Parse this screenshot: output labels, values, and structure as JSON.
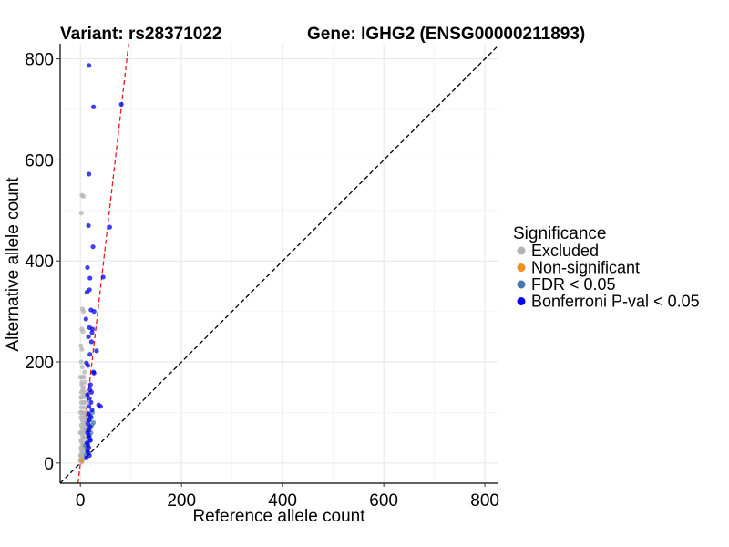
{
  "chart_data": {
    "type": "scatter",
    "title_left": "Variant: rs28371022",
    "title_right": "Gene: IGHG2 (ENSG00000211893)",
    "xlabel": "Reference allele count",
    "ylabel": "Alternative allele count",
    "xlim": [
      -40,
      825
    ],
    "ylim": [
      -40,
      830
    ],
    "xticks": [
      0,
      200,
      400,
      600,
      800
    ],
    "yticks": [
      0,
      200,
      400,
      600,
      800
    ],
    "xtick_labels": [
      "0",
      "200",
      "400",
      "600",
      "800"
    ],
    "ytick_labels": [
      "0",
      "200",
      "400",
      "600",
      "800"
    ],
    "grid": true,
    "reference_lines": [
      {
        "name": "identity-line",
        "slope": 1,
        "intercept": 0,
        "color": "#000000",
        "style": "dashed"
      },
      {
        "name": "fit-line",
        "slope": 8.7,
        "intercept": 0,
        "color": "#e41a1c",
        "style": "dashed"
      }
    ],
    "legend": {
      "title": "Significance",
      "position": "right",
      "entries": [
        {
          "label": "Excluded",
          "color": "#b3b3b3"
        },
        {
          "label": "Non-significant",
          "color": "#f28e1c"
        },
        {
          "label": "FDR < 0.05",
          "color": "#4478b0"
        },
        {
          "label": "Bonferroni P-val < 0.05",
          "color": "#0000ee"
        }
      ]
    },
    "series": [
      {
        "name": "Excluded",
        "color": "#b3b3b3",
        "points": [
          [
            3,
            530
          ],
          [
            6,
            528
          ],
          [
            2,
            495
          ],
          [
            4,
            305
          ],
          [
            6,
            300
          ],
          [
            3,
            265
          ],
          [
            5,
            260
          ],
          [
            1,
            232
          ],
          [
            3,
            225
          ],
          [
            2,
            200
          ],
          [
            4,
            190
          ],
          [
            3,
            160
          ],
          [
            2,
            140
          ],
          [
            4,
            130
          ],
          [
            6,
            120
          ],
          [
            2,
            110
          ],
          [
            3,
            100
          ],
          [
            5,
            95
          ],
          [
            1,
            90
          ],
          [
            4,
            85
          ],
          [
            6,
            80
          ],
          [
            2,
            75
          ],
          [
            3,
            70
          ],
          [
            5,
            65
          ],
          [
            1,
            60
          ],
          [
            4,
            55
          ],
          [
            6,
            50
          ],
          [
            2,
            45
          ],
          [
            3,
            40
          ],
          [
            5,
            35
          ],
          [
            1,
            30
          ],
          [
            4,
            28
          ],
          [
            2,
            25
          ],
          [
            3,
            20
          ],
          [
            5,
            18
          ],
          [
            1,
            15
          ],
          [
            4,
            12
          ],
          [
            2,
            10
          ],
          [
            3,
            8
          ],
          [
            5,
            6
          ],
          [
            1,
            5
          ],
          [
            2,
            3
          ],
          [
            3,
            2
          ],
          [
            6,
            150
          ],
          [
            7,
            170
          ],
          [
            8,
            110
          ],
          [
            9,
            140
          ],
          [
            7,
            60
          ],
          [
            8,
            40
          ],
          [
            6,
            100
          ],
          [
            9,
            90
          ],
          [
            10,
            120
          ],
          [
            8,
            180
          ],
          [
            5,
            145
          ],
          [
            7,
            135
          ],
          [
            10,
            160
          ],
          [
            11,
            130
          ],
          [
            9,
            70
          ],
          [
            12,
            100
          ],
          [
            10,
            50
          ],
          [
            11,
            75
          ],
          [
            13,
            85
          ],
          [
            8,
            25
          ],
          [
            9,
            30
          ],
          [
            4,
            170
          ],
          [
            3,
            155
          ],
          [
            2,
            120
          ],
          [
            7,
            10
          ],
          [
            6,
            15
          ],
          [
            0,
            5
          ],
          [
            0,
            15
          ],
          [
            1,
            45
          ],
          [
            0,
            60
          ],
          [
            0,
            100
          ],
          [
            1,
            130
          ],
          [
            0,
            170
          ],
          [
            12,
            50
          ]
        ]
      },
      {
        "name": "Non-significant",
        "color": "#f28e1c",
        "points": [
          [
            2,
            5
          ]
        ]
      },
      {
        "name": "FDR < 0.05",
        "color": "#4478b0",
        "points": [
          [
            14,
            65
          ],
          [
            18,
            55
          ],
          [
            22,
            90
          ],
          [
            26,
            80
          ],
          [
            15,
            40
          ],
          [
            20,
            70
          ],
          [
            12,
            30
          ],
          [
            24,
            100
          ],
          [
            16,
            85
          ],
          [
            19,
            45
          ],
          [
            13,
            20
          ],
          [
            17,
            95
          ],
          [
            21,
            60
          ],
          [
            11,
            15
          ],
          [
            10,
            35
          ],
          [
            23,
            75
          ]
        ]
      },
      {
        "name": "Bonferroni P-val < 0.05",
        "color": "#0000ee",
        "points": [
          [
            17,
            787
          ],
          [
            81,
            710
          ],
          [
            26,
            705
          ],
          [
            17,
            572
          ],
          [
            58,
            467
          ],
          [
            16,
            470
          ],
          [
            25,
            428
          ],
          [
            14,
            387
          ],
          [
            45,
            368
          ],
          [
            19,
            366
          ],
          [
            18,
            343
          ],
          [
            13,
            338
          ],
          [
            27,
            300
          ],
          [
            21,
            303
          ],
          [
            11,
            285
          ],
          [
            18,
            268
          ],
          [
            24,
            265
          ],
          [
            23,
            258
          ],
          [
            16,
            250
          ],
          [
            22,
            240
          ],
          [
            32,
            222
          ],
          [
            19,
            215
          ],
          [
            12,
            198
          ],
          [
            15,
            193
          ],
          [
            26,
            180
          ],
          [
            27,
            178
          ],
          [
            40,
            112
          ],
          [
            36,
            115
          ],
          [
            20,
            155
          ],
          [
            19,
            145
          ],
          [
            22,
            140
          ],
          [
            14,
            135
          ],
          [
            18,
            128
          ],
          [
            21,
            120
          ],
          [
            17,
            112
          ],
          [
            23,
            105
          ],
          [
            16,
            98
          ],
          [
            20,
            92
          ],
          [
            18,
            85
          ],
          [
            15,
            78
          ],
          [
            19,
            72
          ],
          [
            17,
            65
          ],
          [
            14,
            60
          ],
          [
            16,
            55
          ],
          [
            18,
            50
          ],
          [
            20,
            45
          ],
          [
            13,
            40
          ],
          [
            15,
            35
          ],
          [
            17,
            30
          ],
          [
            14,
            25
          ],
          [
            16,
            20
          ],
          [
            18,
            15
          ],
          [
            12,
            10
          ]
        ]
      }
    ]
  }
}
